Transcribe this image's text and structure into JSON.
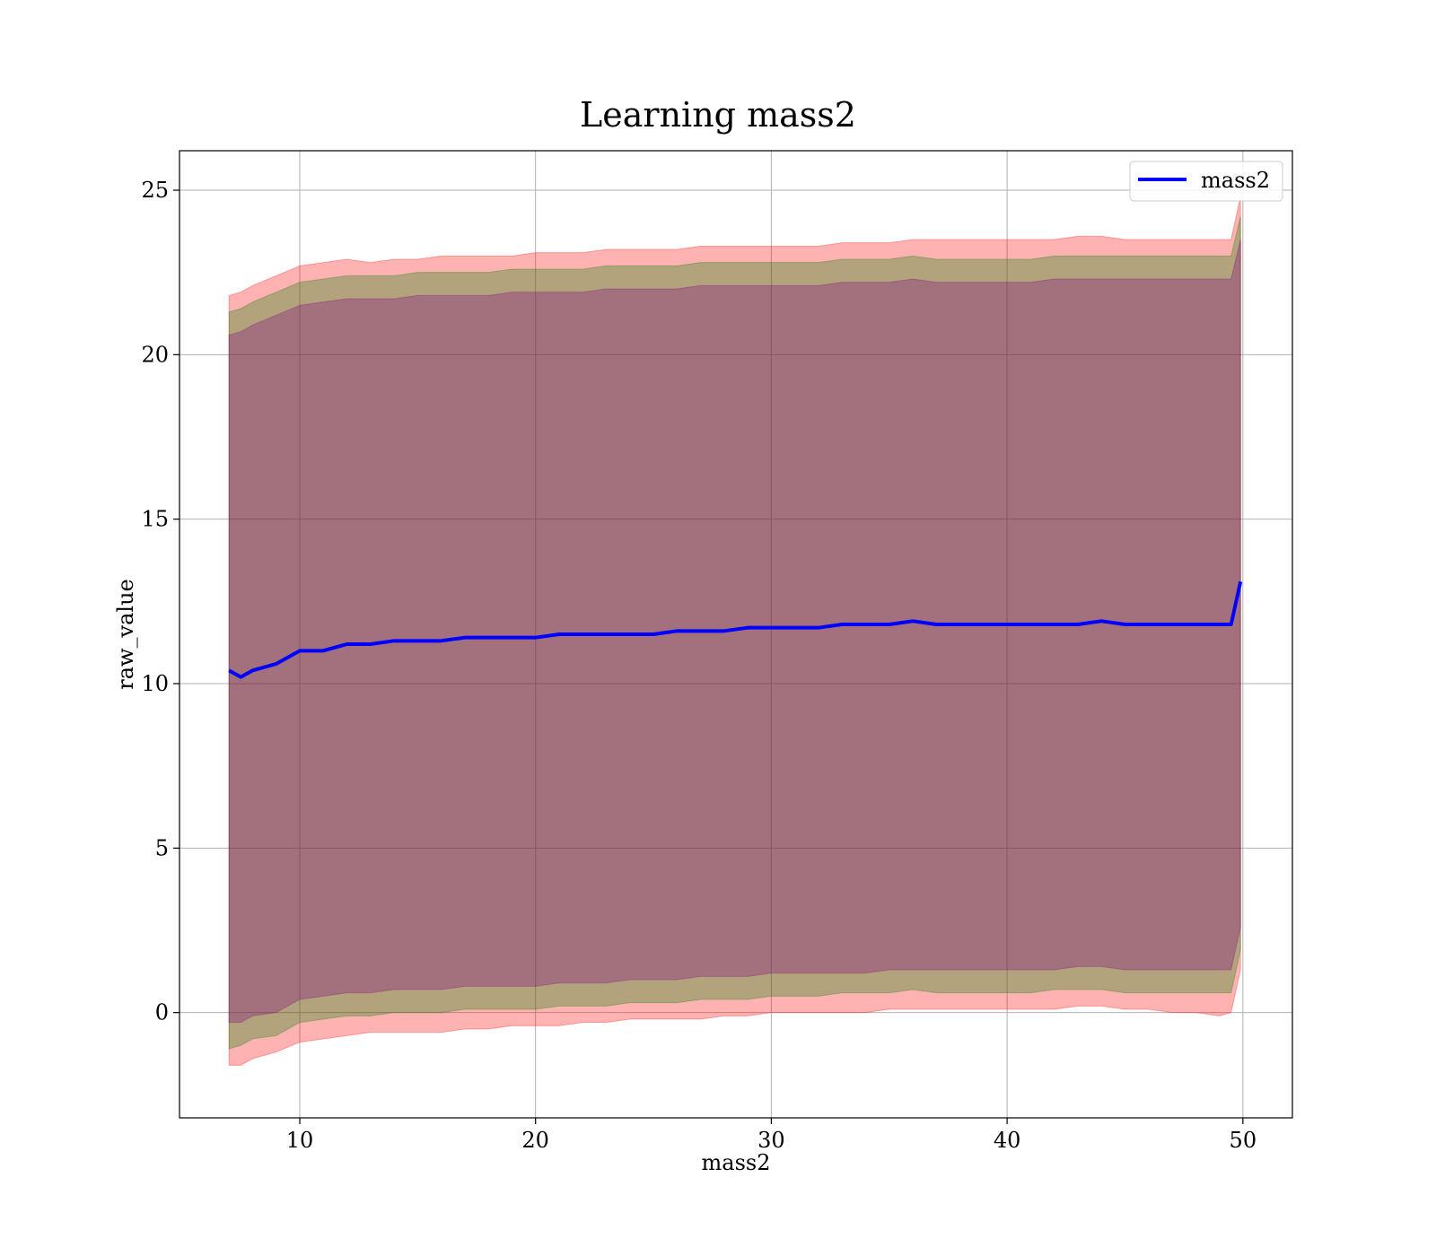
{
  "chart_data": {
    "type": "area",
    "title": "Learning mass2",
    "xlabel": "mass2",
    "ylabel": "raw_value",
    "xlim": [
      4.9,
      52.1
    ],
    "ylim": [
      -3.2,
      26.2
    ],
    "xticks": [
      10,
      20,
      30,
      40,
      50
    ],
    "yticks": [
      0,
      5,
      10,
      15,
      20,
      25
    ],
    "grid": true,
    "legend": {
      "placement": "top-right",
      "entries": [
        "mass2"
      ]
    },
    "x": [
      7.0,
      7.5,
      8.0,
      9.0,
      10.0,
      11.0,
      12.0,
      13.0,
      14.0,
      15.0,
      16.0,
      17.0,
      18.0,
      19.0,
      20.0,
      21.0,
      22.0,
      23.0,
      24.0,
      25.0,
      26.0,
      27.0,
      28.0,
      29.0,
      30.0,
      31.0,
      32.0,
      33.0,
      34.0,
      35.0,
      36.0,
      37.0,
      38.0,
      39.0,
      40.0,
      41.0,
      42.0,
      43.0,
      44.0,
      45.0,
      46.0,
      47.0,
      48.0,
      49.0,
      49.5,
      49.9
    ],
    "series": [
      {
        "name": "mass2",
        "color": "#0000ff",
        "values": [
          10.4,
          10.2,
          10.4,
          10.6,
          11.0,
          11.0,
          11.2,
          11.2,
          11.3,
          11.3,
          11.3,
          11.4,
          11.4,
          11.4,
          11.4,
          11.5,
          11.5,
          11.5,
          11.5,
          11.5,
          11.6,
          11.6,
          11.6,
          11.7,
          11.7,
          11.7,
          11.7,
          11.8,
          11.8,
          11.8,
          11.9,
          11.8,
          11.8,
          11.8,
          11.8,
          11.8,
          11.8,
          11.8,
          11.9,
          11.8,
          11.8,
          11.8,
          11.8,
          11.8,
          11.8,
          13.1
        ]
      }
    ],
    "bands": [
      {
        "color": "#ff0000",
        "opacity": 0.3,
        "upper": [
          21.8,
          21.9,
          22.1,
          22.4,
          22.7,
          22.8,
          22.9,
          22.8,
          22.9,
          22.9,
          23.0,
          23.0,
          23.0,
          23.0,
          23.1,
          23.1,
          23.1,
          23.2,
          23.2,
          23.2,
          23.2,
          23.3,
          23.3,
          23.3,
          23.3,
          23.3,
          23.3,
          23.4,
          23.4,
          23.4,
          23.5,
          23.5,
          23.5,
          23.5,
          23.5,
          23.5,
          23.5,
          23.6,
          23.6,
          23.5,
          23.5,
          23.5,
          23.5,
          23.5,
          23.5,
          24.8
        ],
        "lower": [
          -1.6,
          -1.6,
          -1.4,
          -1.2,
          -0.9,
          -0.8,
          -0.7,
          -0.6,
          -0.6,
          -0.6,
          -0.6,
          -0.5,
          -0.5,
          -0.4,
          -0.4,
          -0.4,
          -0.3,
          -0.3,
          -0.2,
          -0.2,
          -0.2,
          -0.2,
          -0.1,
          -0.1,
          0.0,
          0.0,
          0.0,
          0.0,
          0.0,
          0.1,
          0.1,
          0.1,
          0.1,
          0.1,
          0.1,
          0.1,
          0.1,
          0.2,
          0.2,
          0.1,
          0.1,
          0.0,
          0.0,
          -0.1,
          0.0,
          1.3
        ]
      },
      {
        "color": "#008000",
        "opacity": 0.3,
        "upper": [
          21.3,
          21.4,
          21.6,
          21.9,
          22.2,
          22.3,
          22.4,
          22.4,
          22.4,
          22.5,
          22.5,
          22.5,
          22.5,
          22.6,
          22.6,
          22.6,
          22.6,
          22.7,
          22.7,
          22.7,
          22.7,
          22.8,
          22.8,
          22.8,
          22.8,
          22.8,
          22.8,
          22.9,
          22.9,
          22.9,
          23.0,
          22.9,
          22.9,
          22.9,
          22.9,
          22.9,
          23.0,
          23.0,
          23.0,
          23.0,
          23.0,
          23.0,
          23.0,
          23.0,
          23.0,
          24.2
        ],
        "lower": [
          -1.1,
          -1.0,
          -0.8,
          -0.7,
          -0.3,
          -0.2,
          -0.1,
          -0.1,
          0.0,
          0.0,
          0.0,
          0.1,
          0.1,
          0.1,
          0.1,
          0.2,
          0.2,
          0.2,
          0.3,
          0.3,
          0.3,
          0.4,
          0.4,
          0.4,
          0.5,
          0.5,
          0.5,
          0.6,
          0.6,
          0.6,
          0.7,
          0.6,
          0.6,
          0.6,
          0.6,
          0.6,
          0.7,
          0.7,
          0.7,
          0.6,
          0.6,
          0.6,
          0.6,
          0.6,
          0.6,
          1.9
        ]
      },
      {
        "color": "#800080",
        "opacity": 0.3,
        "upper": [
          20.6,
          20.7,
          20.9,
          21.2,
          21.5,
          21.6,
          21.7,
          21.7,
          21.7,
          21.8,
          21.8,
          21.8,
          21.8,
          21.9,
          21.9,
          21.9,
          21.9,
          22.0,
          22.0,
          22.0,
          22.0,
          22.1,
          22.1,
          22.1,
          22.1,
          22.1,
          22.1,
          22.2,
          22.2,
          22.2,
          22.3,
          22.2,
          22.2,
          22.2,
          22.2,
          22.2,
          22.3,
          22.3,
          22.3,
          22.3,
          22.3,
          22.3,
          22.3,
          22.3,
          22.3,
          23.5
        ],
        "lower": [
          -0.3,
          -0.3,
          -0.1,
          0.0,
          0.4,
          0.5,
          0.6,
          0.6,
          0.7,
          0.7,
          0.7,
          0.8,
          0.8,
          0.8,
          0.8,
          0.9,
          0.9,
          0.9,
          1.0,
          1.0,
          1.0,
          1.1,
          1.1,
          1.1,
          1.2,
          1.2,
          1.2,
          1.2,
          1.2,
          1.3,
          1.3,
          1.3,
          1.3,
          1.3,
          1.3,
          1.3,
          1.3,
          1.4,
          1.4,
          1.3,
          1.3,
          1.3,
          1.3,
          1.3,
          1.3,
          2.6
        ]
      }
    ]
  }
}
